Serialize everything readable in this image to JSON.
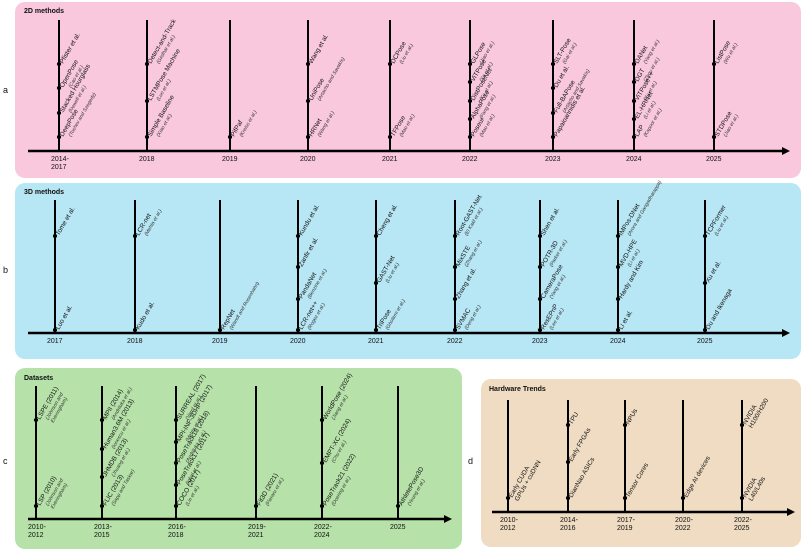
{
  "colors": {
    "pink": "#f9c8dc",
    "blue": "#b7e6f4",
    "green": "#b6e2a9",
    "tan": "#efdcc3",
    "line": "#000000"
  },
  "panels": {
    "a": {
      "label": "a",
      "title": "2D methods",
      "years": [
        "2014-\n2017",
        "2018",
        "2019",
        "2020",
        "2021",
        "2022",
        "2023",
        "2024",
        "2025"
      ],
      "columns": [
        [
          [
            "Pfister et al.",
            ""
          ],
          [
            "OpenPose",
            "(Cao et al.)"
          ],
          [
            "Stacked Hourglass",
            "(Newell et al.)"
          ],
          [
            "DeepPose",
            "(Toshev and Szegedy)"
          ]
        ],
        [
          [
            "Detect-and-Track",
            "(Girdhar et al.)"
          ],
          [
            "LSTMPose Machine",
            "(Luo et al.)"
          ],
          [
            "Simple Baseline",
            "(Xiao et al.)"
          ]
        ],
        [
          [
            "PifPaf",
            "(Kreiss et al.)"
          ]
        ],
        [
          [
            "Wang et al.",
            ""
          ],
          [
            "UniPose",
            "(Artacho and Savakis)"
          ],
          [
            "HRNet",
            "(Wang et al.)"
          ]
        ],
        [
          [
            "DCPose",
            "(Liu et al.)"
          ],
          [
            "TFPose",
            "(Mao et al.)"
          ]
        ],
        [
          [
            "GLPose",
            "(Jiao et al.)"
          ],
          [
            "ViTPose",
            "(Xu et al.)"
          ],
          [
            "DistPoseNet",
            "(Ke et al.)"
          ],
          [
            "AlphaPose",
            "(Fang et al.)"
          ],
          [
            "Poseur",
            "(Mao et al.)"
          ]
        ],
        [
          [
            "SLT-Pose",
            "(Gai et al.)"
          ],
          [
            "Du et al.",
            ""
          ],
          [
            "Full-BAPose",
            "(Artacho and Savakis)"
          ],
          [
            "Papaioannidis et al.",
            ""
          ]
        ],
        [
          [
            "DANet",
            "(Yang et al.)"
          ],
          [
            "DGT",
            "(Zhou et al.)"
          ],
          [
            "ViTPose++",
            "(Xu et al.)"
          ],
          [
            "EL-HRNet",
            "(Li et al.)"
          ],
          [
            "LAP",
            "(Kapoor et al.)"
          ]
        ],
        [
          [
            "ListPose",
            "(Wu et al.)"
          ],
          [
            "STDPose",
            "(Jiao et al.)"
          ]
        ]
      ]
    },
    "b": {
      "label": "b",
      "title": "3D methods",
      "years": [
        "2017",
        "2018",
        "2019",
        "2020",
        "2021",
        "2022",
        "2023",
        "2024",
        "2025"
      ],
      "columns": [
        [
          [
            "Tome et al.",
            ""
          ],
          [
            "Luo et al.",
            ""
          ]
        ],
        [
          [
            "LCR-net",
            "(Mehta et al.)"
          ],
          [
            "Kudo et al.",
            ""
          ]
        ],
        [
          [
            "RepNet",
            "(Wandt and Rosenhahn)"
          ]
        ],
        [
          [
            "Kundu et al.",
            ""
          ],
          [
            "Zanfir et al.",
            ""
          ],
          [
            "PandaNet",
            "(Benzine et al.)"
          ],
          [
            "LCR-net++",
            "(Rogez et al.)"
          ]
        ],
        [
          [
            "Cheng et al.",
            ""
          ],
          [
            "GAST-Net",
            "(Liu et al.)"
          ],
          [
            "TriPose",
            "(Gholami et al.)"
          ]
        ],
        [
          [
            "Root-GAST-Net",
            "(El Kaid et al.)"
          ],
          [
            "MixSTE",
            "(Zhang et al.)"
          ],
          [
            "Zhang et al.",
            ""
          ],
          [
            "SVMAC",
            "(Deng et al.)"
          ]
        ],
        [
          [
            "Shen et al.",
            ""
          ],
          [
            "POTR-3D",
            "(Parker et al.)"
          ],
          [
            "CameraPose",
            "(Yang et al.)"
          ],
          [
            "ResEPnP",
            "(Lee et al.)"
          ]
        ],
        [
          [
            "IMPos-DNet",
            "(Arora and Gangadharappa)"
          ],
          [
            "MVD-HPE",
            "(Li et al.)"
          ],
          [
            "Hardy and Kim",
            ""
          ],
          [
            "Li et al.",
            ""
          ]
        ],
        [
          [
            "TCPFormer",
            "(Liu et al.)"
          ],
          [
            "Xu et al.",
            ""
          ],
          [
            "Du and Ikenaga",
            ""
          ]
        ]
      ]
    },
    "c": {
      "label": "c",
      "title": "Datasets",
      "years": [
        "2010-\n2012",
        "2013-\n2015",
        "2016-\n2018",
        "2019-\n2021",
        "2022-\n2024",
        "2025"
      ],
      "columns": [
        [
          [
            "LSPE (2011)",
            "(Johnson and\nEveringham)"
          ],
          [
            "LSP (2010)",
            "(Johnson and\nEveringham)"
          ]
        ],
        [
          [
            "MPII (2014)",
            "(Andriluka et al.)"
          ],
          [
            "Human3.6M (2013)",
            "(Ionescu et al.)"
          ],
          [
            "JHMDB (2013)",
            "(Jhuang et al.)"
          ],
          [
            "FLIC (2013)",
            "(Sapp and Taskar)"
          ]
        ],
        [
          [
            "SURREAL (2017)",
            "(Varol et al.)"
          ],
          [
            "MPI-INF-3DHP (2017)",
            "(Mehta et al.)"
          ],
          [
            "PoseTrack18 (2018)",
            "(Andriluka et al.)"
          ],
          [
            "PoseTrack17 (2017)",
            "(Iqbal et al.)"
          ],
          [
            "COCO (2017)",
            "(Lin et al.)"
          ]
        ],
        [
          [
            "Fit3D (2021)",
            "(Fieraru et al.)"
          ]
        ],
        [
          [
            "WorldPose (2024)",
            "(Jiang et al.)"
          ],
          [
            "EMPT-XC (2024)",
            "(Chu et al.)"
          ],
          [
            "PoseTrack21 (2022)",
            "(Doering et al.)"
          ]
        ],
        [
          [
            "AthletePose3D",
            "(Yeung et al.)"
          ]
        ]
      ]
    },
    "d": {
      "label": "d",
      "title": "Hardware Trends",
      "years": [
        "2010-\n2012",
        "2014-\n2016",
        "2017-\n2019",
        "2020-\n2022",
        "2022-\n2025"
      ],
      "columns": [
        [
          [
            "Early CUDA\nGPUs + cuDNN",
            ""
          ]
        ],
        [
          [
            "TPU",
            ""
          ],
          [
            "Early FPGAs",
            ""
          ],
          [
            "DianNao ASICs",
            ""
          ]
        ],
        [
          [
            "NPUs",
            ""
          ],
          [
            "Tensor Cores",
            ""
          ]
        ],
        [
          [
            "Edge AI devices",
            ""
          ]
        ],
        [
          [
            "NVIDIA\nH100/H200",
            ""
          ],
          [
            "NVIDIA\nL40/L40s",
            ""
          ]
        ]
      ]
    }
  }
}
